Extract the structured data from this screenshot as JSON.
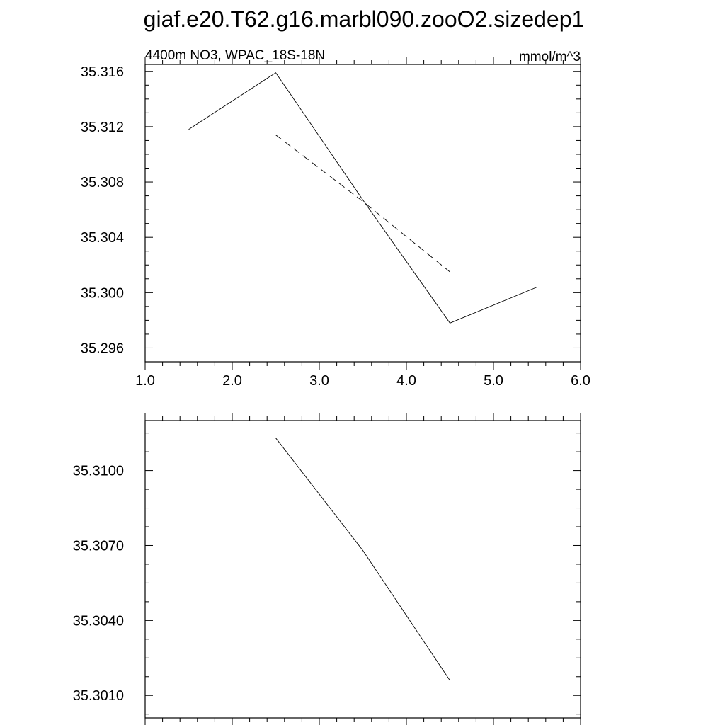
{
  "figure": {
    "title": "giaf.e20.T62.g16.marbl090.zooO2.sizedep1"
  },
  "chart_data": [
    {
      "type": "line",
      "title": "4400m NO3, WPAC_18S-18N",
      "units": "mmol/m^3",
      "xlim": [
        1.0,
        6.0
      ],
      "ylim": [
        35.295,
        35.3165
      ],
      "x_ticks": [
        1.0,
        2.0,
        3.0,
        4.0,
        5.0,
        6.0
      ],
      "x_tick_labels": [
        "1.0",
        "2.0",
        "3.0",
        "4.0",
        "5.0",
        "6.0"
      ],
      "y_ticks": [
        35.296,
        35.3,
        35.304,
        35.308,
        35.312,
        35.316
      ],
      "y_tick_labels": [
        "35.296",
        "35.300",
        "35.304",
        "35.308",
        "35.312",
        "35.316"
      ],
      "grid": false,
      "series": [
        {
          "style": "solid",
          "x": [
            1.5,
            2.5,
            3.5,
            4.5,
            5.5
          ],
          "y": [
            35.3118,
            35.3159,
            35.3067,
            35.2978,
            35.3004
          ]
        },
        {
          "style": "dashed",
          "x": [
            2.5,
            3.5,
            4.5
          ],
          "y": [
            35.3114,
            35.3066,
            35.3015
          ]
        }
      ]
    },
    {
      "type": "line",
      "xlim": [
        1.0,
        6.0
      ],
      "ylim": [
        35.3001,
        35.312
      ],
      "x_ticks": [
        1.0,
        2.0,
        3.0,
        4.0,
        5.0,
        6.0
      ],
      "y_ticks": [
        35.301,
        35.304,
        35.307,
        35.31
      ],
      "y_tick_labels": [
        "35.3010",
        "35.3040",
        "35.3070",
        "35.3100"
      ],
      "grid": false,
      "series": [
        {
          "style": "solid",
          "x": [
            2.5,
            3.5,
            4.5
          ],
          "y": [
            35.3113,
            35.3068,
            35.3016
          ]
        }
      ]
    }
  ]
}
